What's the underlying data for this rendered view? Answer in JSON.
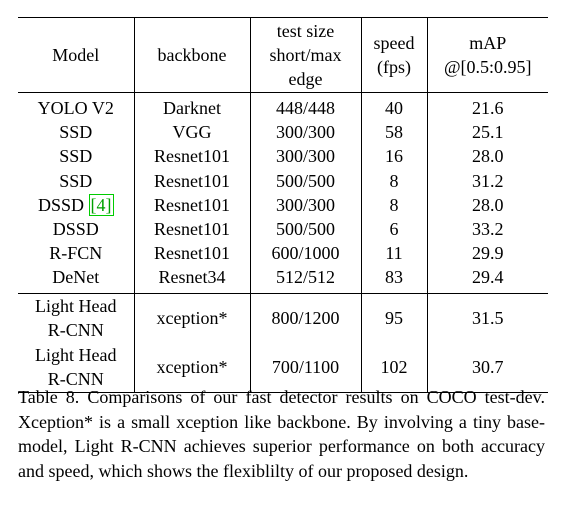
{
  "table": {
    "headers": {
      "model": "Model",
      "backbone": "backbone",
      "test_size_l1": "test size",
      "test_size_l2": "short/max",
      "test_size_l3": "edge",
      "speed_l1": "speed",
      "speed_l2": "(fps)",
      "map_l1": "mAP",
      "map_l2": "@[0.5:0.95]"
    },
    "fast_rows": [
      {
        "model": "YOLO V2",
        "backbone": "Darknet",
        "size": "448/448",
        "speed": "40",
        "map": "21.6"
      },
      {
        "model": "SSD",
        "backbone": "VGG",
        "size": "300/300",
        "speed": "58",
        "map": "25.1"
      },
      {
        "model": "SSD",
        "backbone": "Resnet101",
        "size": "300/300",
        "speed": "16",
        "map": "28.0"
      },
      {
        "model": "SSD",
        "backbone": "Resnet101",
        "size": "500/500",
        "speed": "8",
        "map": "31.2"
      },
      {
        "model": "DSSD",
        "cite": "4",
        "backbone": "Resnet101",
        "size": "300/300",
        "speed": "8",
        "map": "28.0"
      },
      {
        "model": "DSSD",
        "backbone": "Resnet101",
        "size": "500/500",
        "speed": "6",
        "map": "33.2"
      },
      {
        "model": "R-FCN",
        "backbone": "Resnet101",
        "size": "600/1000",
        "speed": "11",
        "map": "29.9"
      },
      {
        "model": "DeNet",
        "backbone": "Resnet34",
        "size": "512/512",
        "speed": "83",
        "map": "29.4"
      }
    ],
    "ours_rows": [
      {
        "model_l1": "Light Head",
        "model_l2": "R-CNN",
        "backbone": "xception*",
        "size": "800/1200",
        "speed": "95",
        "map": "31.5"
      },
      {
        "model_l1": "Light Head",
        "model_l2": "R-CNN",
        "backbone": "xception*",
        "size": "700/1100",
        "speed": "102",
        "map": "30.7"
      }
    ]
  },
  "caption": "Table 8. Comparisons of our fast detector results on COCO test-dev. Xception* is a small xception like backbone. By involving a tiny base-model, Light R-CNN achieves superior performance on both accuracy and speed, which shows the flexiblilty of our proposed design."
}
